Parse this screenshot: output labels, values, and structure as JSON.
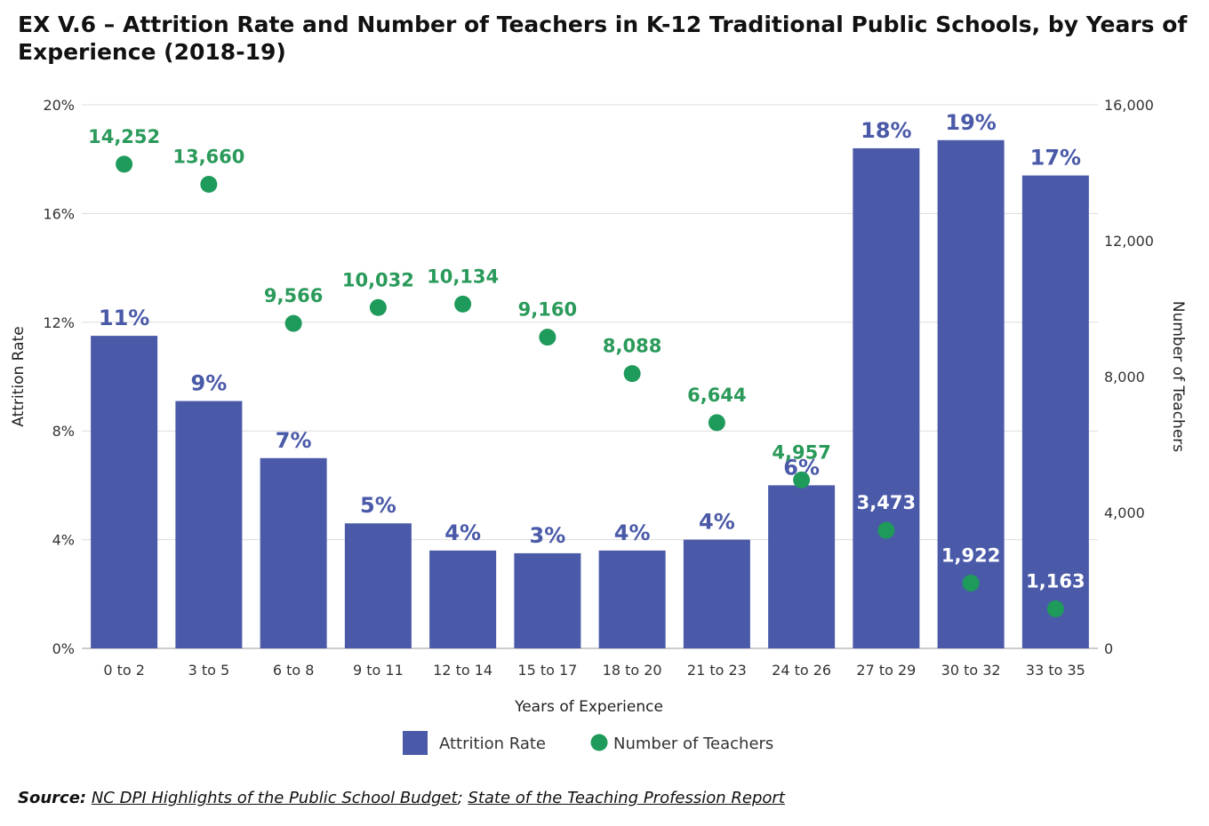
{
  "title": "EX V.6 – Attrition Rate and Number of Teachers in K-12 Traditional Public Schools, by Years of Experience (2018-19)",
  "source": {
    "prefix": "Source:",
    "link1": "NC DPI Highlights of the Public School Budget",
    "separator": ";",
    "link2": "State of the Teaching Profession Report"
  },
  "colors": {
    "bar": "#4a5aa8",
    "dot": "#1e9a5a",
    "dot_label": "#2a9a5a",
    "bar_label": "#4a5aa8",
    "bar_label_inside": "#ffffff"
  },
  "chart_data": {
    "type": "bar",
    "categories": [
      "0 to 2",
      "3 to 5",
      "6 to 8",
      "9 to 11",
      "12 to 14",
      "15 to 17",
      "18 to 20",
      "21 to 23",
      "24 to 26",
      "27 to 29",
      "30 to 32",
      "33 to 35"
    ],
    "xlabel": "Years of Experience",
    "ylabel": "Attrition Rate",
    "y2label": "Number of Teachers",
    "ylim": [
      0,
      20
    ],
    "y2lim": [
      0,
      16000
    ],
    "yticks": [
      "0%",
      "4%",
      "8%",
      "12%",
      "16%",
      "20%"
    ],
    "y2ticks": [
      "0",
      "4,000",
      "8,000",
      "12,000",
      "16,000"
    ],
    "grid": true,
    "legend_position": "bottom",
    "series": [
      {
        "name": "Attrition Rate",
        "type": "bar",
        "axis": "left",
        "values": [
          11.5,
          9.1,
          7.0,
          4.6,
          3.6,
          3.5,
          3.6,
          4.0,
          6.0,
          18.4,
          18.7,
          17.4
        ],
        "labels": [
          "11%",
          "9%",
          "7%",
          "5%",
          "4%",
          "3%",
          "4%",
          "4%",
          "6%",
          "18%",
          "19%",
          "17%"
        ]
      },
      {
        "name": "Number of Teachers",
        "type": "scatter",
        "axis": "right",
        "values": [
          14252,
          13660,
          9566,
          10032,
          10134,
          9160,
          8088,
          6644,
          4957,
          3473,
          1922,
          1163
        ],
        "labels": [
          "14,252",
          "13,660",
          "9,566",
          "10,032",
          "10,134",
          "9,160",
          "8,088",
          "6,644",
          "4,957",
          "3,473",
          "1,922",
          "1,163"
        ]
      }
    ]
  }
}
